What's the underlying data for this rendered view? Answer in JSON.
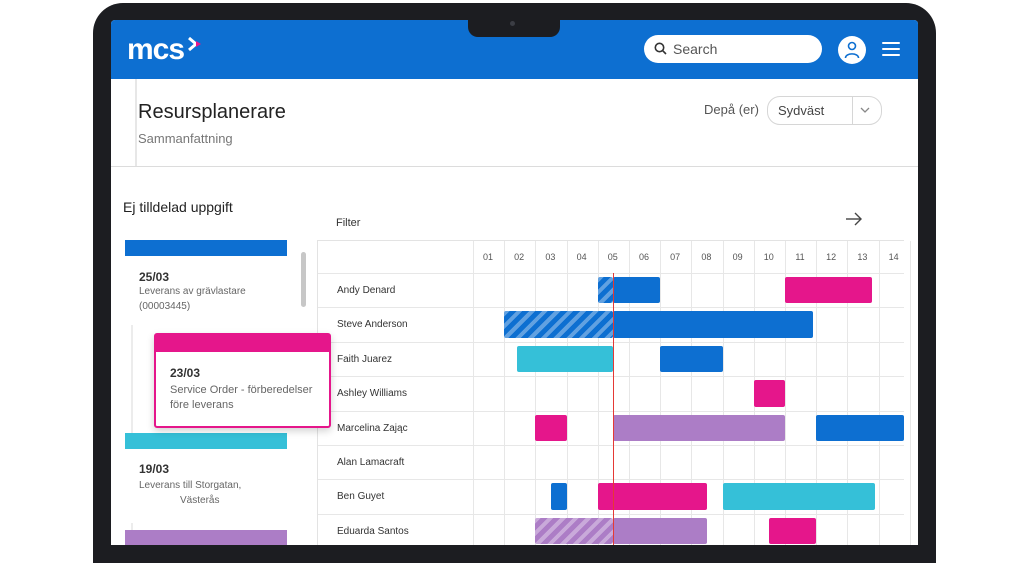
{
  "brand": {
    "logo_text": "mcs"
  },
  "search": {
    "placeholder": "Search",
    "icon": "search-icon"
  },
  "header": {
    "title": "Resursplanerare",
    "subtitle": "Sammanfattning",
    "depot_label": "Depå (er)",
    "depot_value": "Sydväst"
  },
  "unassigned": {
    "title": "Ej tilldelad uppgift",
    "cards": [
      {
        "date": "25/03",
        "desc1": "Leverans av grävlastare",
        "desc2": "(00003445)",
        "color": "#0d6fd1"
      },
      {
        "date": "23/03",
        "desc1": "Service Order - förberedelser",
        "desc2": "före leverans",
        "color": "#e5168b"
      },
      {
        "date": "19/03",
        "desc1": "Leverans till Storgatan,",
        "desc2": "Västerås",
        "color": "#35c0d8"
      },
      {
        "color": "#ac7dc6"
      }
    ]
  },
  "schedule": {
    "filter_label": "Filter",
    "hours": [
      "01",
      "02",
      "03",
      "04",
      "05",
      "06",
      "07",
      "08",
      "09",
      "10",
      "11",
      "12",
      "13",
      "14"
    ],
    "now_hour": 5.5,
    "colors": {
      "blue": "#0d6fd1",
      "pink": "#e5168b",
      "cyan": "#35c0d8",
      "purple": "#ac7dc6"
    },
    "rows": [
      {
        "name": "Andy Denard",
        "bars": [
          {
            "start": 5.0,
            "end": 5.5,
            "color": "blue",
            "hatched": true
          },
          {
            "start": 5.5,
            "end": 7.0,
            "color": "blue"
          },
          {
            "start": 11.0,
            "end": 13.8,
            "color": "pink"
          }
        ]
      },
      {
        "name": "Steve Anderson",
        "bars": [
          {
            "start": 2.0,
            "end": 5.5,
            "color": "blue",
            "hatched": true
          },
          {
            "start": 5.5,
            "end": 11.9,
            "color": "blue"
          }
        ]
      },
      {
        "name": "Faith Juarez",
        "bars": [
          {
            "start": 2.4,
            "end": 5.5,
            "color": "cyan"
          },
          {
            "start": 7.0,
            "end": 9.0,
            "color": "blue"
          }
        ]
      },
      {
        "name": "Ashley Williams",
        "bars": [
          {
            "start": 10.0,
            "end": 11.0,
            "color": "pink"
          }
        ]
      },
      {
        "name": "Marcelina Zając",
        "bars": [
          {
            "start": 3.0,
            "end": 4.0,
            "color": "pink"
          },
          {
            "start": 5.5,
            "end": 11.0,
            "color": "purple"
          },
          {
            "start": 12.0,
            "end": 14.8,
            "color": "blue"
          }
        ]
      },
      {
        "name": "Alan Lamacraft",
        "bars": []
      },
      {
        "name": "Ben Guyet",
        "bars": [
          {
            "start": 3.5,
            "end": 4.0,
            "color": "blue"
          },
          {
            "start": 5.0,
            "end": 8.5,
            "color": "pink"
          },
          {
            "start": 9.0,
            "end": 13.9,
            "color": "cyan"
          }
        ]
      },
      {
        "name": "Eduarda Santos",
        "bars": [
          {
            "start": 3.0,
            "end": 5.5,
            "color": "purple",
            "hatched": true
          },
          {
            "start": 5.5,
            "end": 8.5,
            "color": "purple"
          },
          {
            "start": 10.5,
            "end": 12.0,
            "color": "pink"
          }
        ]
      }
    ]
  }
}
